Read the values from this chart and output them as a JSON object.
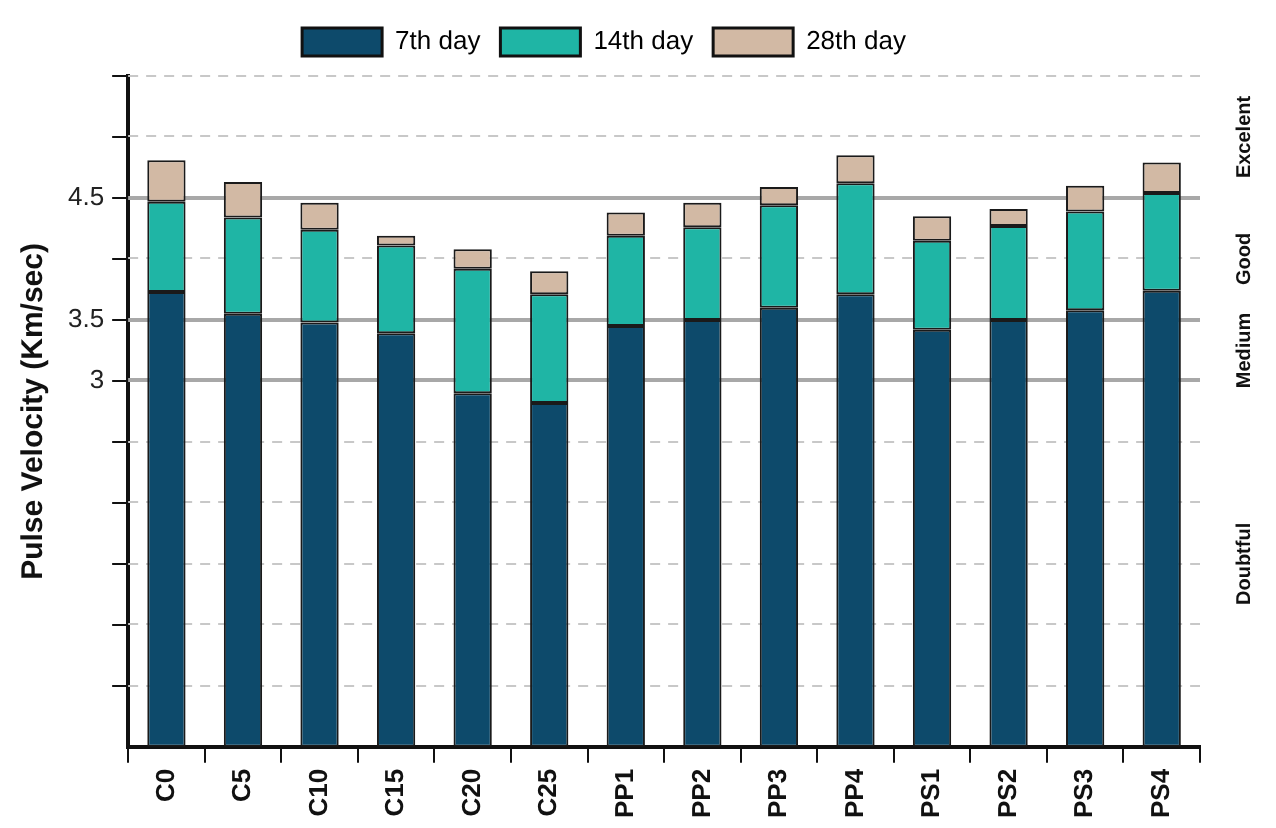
{
  "chart_data": {
    "type": "bar",
    "stacked": true,
    "ylabel": "Pulse Velocity (Km/sec)",
    "categories": [
      "C0",
      "C5",
      "C10",
      "C15",
      "C20",
      "C25",
      "PP1",
      "PP2",
      "PP3",
      "PP4",
      "PS1",
      "PS2",
      "PS3",
      "PS4"
    ],
    "series": [
      {
        "name": "7th day",
        "color": "#0d4a6b",
        "values": [
          3.73,
          3.55,
          3.48,
          3.39,
          2.9,
          2.82,
          3.45,
          3.5,
          3.6,
          3.71,
          3.42,
          3.5,
          3.58,
          3.74
        ]
      },
      {
        "name": "14th day",
        "color": "#1fb5a5",
        "values": [
          0.74,
          0.79,
          0.76,
          0.72,
          1.02,
          0.89,
          0.74,
          0.76,
          0.84,
          0.91,
          0.73,
          0.77,
          0.81,
          0.8
        ]
      },
      {
        "name": "28th day",
        "color": "#d2b9a4",
        "values": [
          0.34,
          0.29,
          0.22,
          0.08,
          0.16,
          0.19,
          0.19,
          0.2,
          0.15,
          0.23,
          0.2,
          0.14,
          0.21,
          0.25
        ]
      }
    ],
    "ylim": [
      0,
      5.5
    ],
    "yticks": [
      {
        "value": 0.5,
        "label": null
      },
      {
        "value": 1,
        "label": null
      },
      {
        "value": 1.5,
        "label": null
      },
      {
        "value": 2,
        "label": null
      },
      {
        "value": 2.5,
        "label": null
      },
      3,
      {
        "value": 3.5,
        "label": "3.5"
      },
      {
        "value": 4,
        "label": null
      },
      {
        "value": 4.5,
        "label": "4.5"
      },
      {
        "value": 5,
        "label": null
      },
      {
        "value": 5.5,
        "label": null
      }
    ],
    "annotations": [
      "Excelent",
      "Good",
      "Medium",
      "Doubtful"
    ],
    "grid": "y",
    "legend": "top"
  }
}
